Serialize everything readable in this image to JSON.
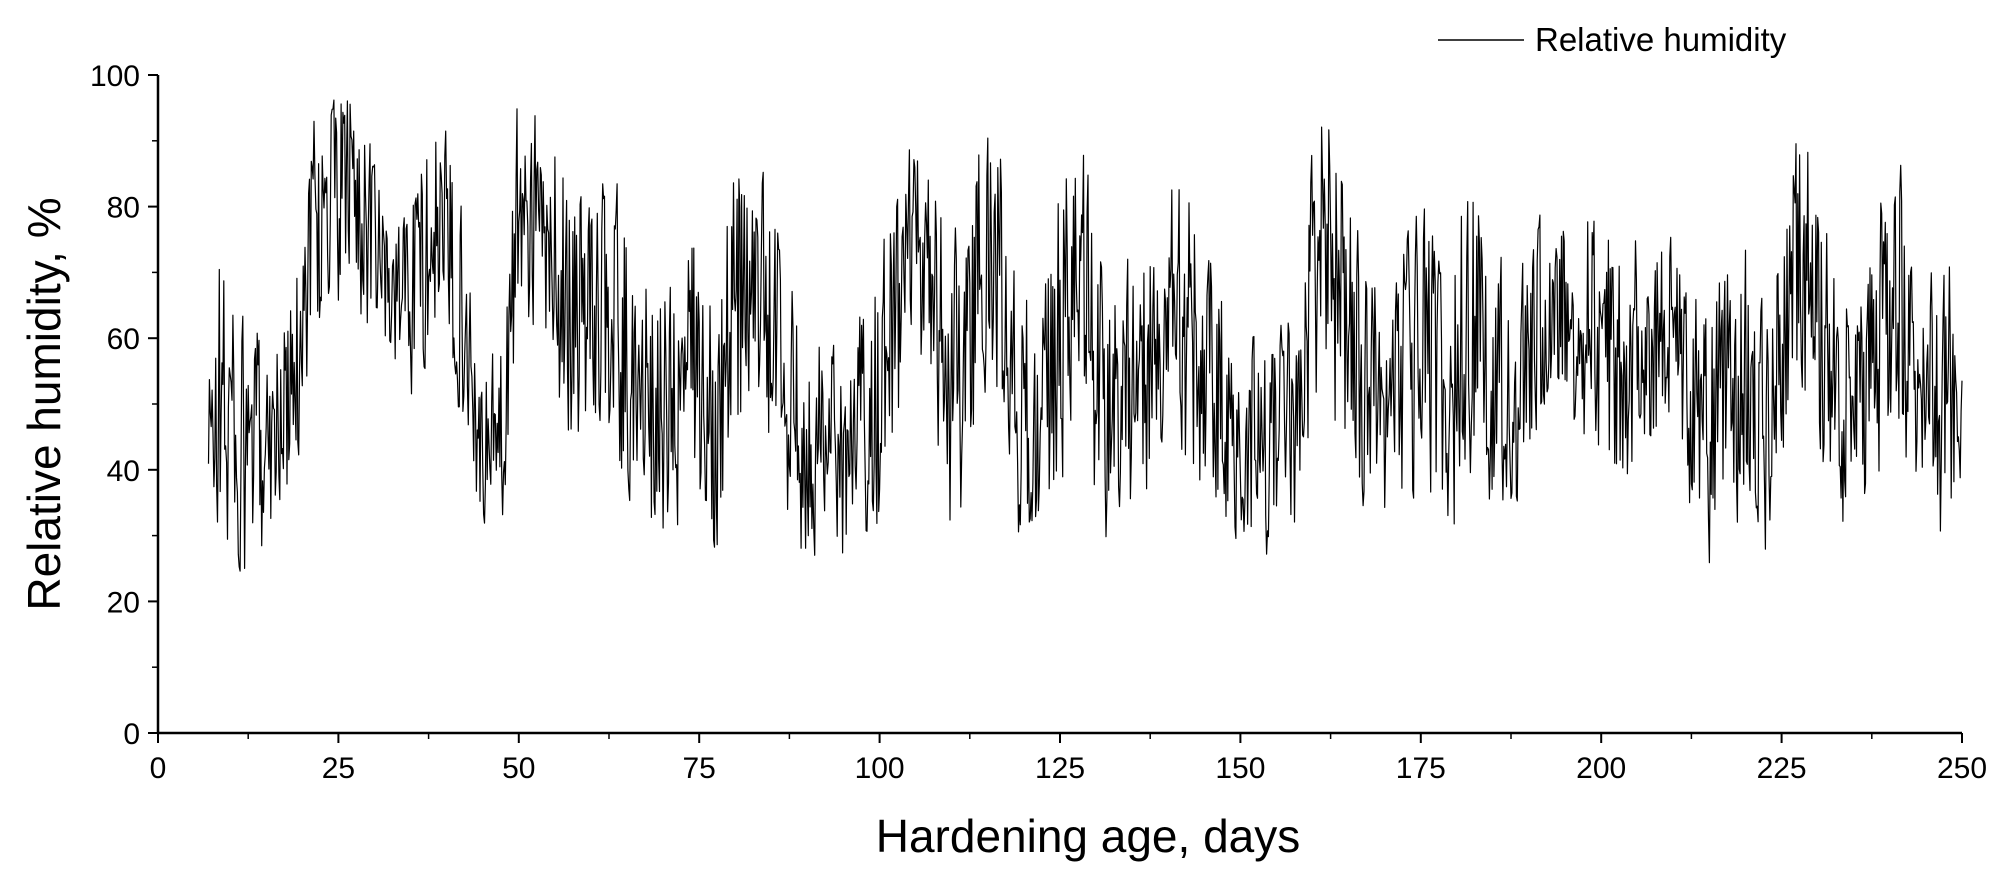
{
  "chart_data": {
    "type": "line",
    "title": "",
    "xlabel": "Hardening age, days",
    "ylabel": "Relative humidity, %",
    "xlim": [
      0,
      250
    ],
    "ylim": [
      0,
      100
    ],
    "xticks": [
      0,
      25,
      50,
      75,
      100,
      125,
      150,
      175,
      200,
      225,
      250
    ],
    "yticks": [
      0,
      20,
      40,
      60,
      80,
      100
    ],
    "grid": false,
    "legend_position": "top-right",
    "series": [
      {
        "name": "Relative humidity",
        "color": "#000000",
        "x_start": 7,
        "x_step": 0.125,
        "envelope_days": [
          7,
          8,
          10,
          12,
          15,
          17,
          19,
          21,
          24,
          27,
          30,
          33,
          36,
          39,
          42,
          45,
          48,
          50,
          53,
          56,
          59,
          62,
          65,
          68,
          71,
          74,
          77,
          80,
          83,
          86,
          89,
          92,
          95,
          98,
          101,
          104,
          107,
          110,
          113,
          116,
          119,
          122,
          125,
          128,
          131,
          134,
          137,
          140,
          143,
          146,
          149,
          152,
          155,
          158,
          161,
          164,
          167,
          170,
          173,
          176,
          179,
          182,
          185,
          188,
          191,
          194,
          197,
          200,
          203,
          206,
          209,
          212,
          214,
          217,
          220,
          223,
          226,
          229,
          232,
          235,
          238,
          241,
          244,
          247,
          250
        ],
        "envelope_mean": [
          40,
          52,
          48,
          40,
          46,
          48,
          52,
          76,
          80,
          84,
          72,
          66,
          70,
          78,
          66,
          42,
          48,
          82,
          76,
          68,
          62,
          66,
          56,
          50,
          48,
          54,
          50,
          66,
          68,
          58,
          44,
          46,
          40,
          48,
          54,
          72,
          70,
          50,
          66,
          74,
          52,
          42,
          62,
          66,
          50,
          52,
          56,
          64,
          60,
          56,
          42,
          46,
          42,
          48,
          78,
          64,
          52,
          46,
          58,
          56,
          50,
          64,
          54,
          50,
          60,
          66,
          66,
          60,
          56,
          60,
          60,
          52,
          44,
          50,
          54,
          44,
          66,
          72,
          50,
          52,
          56,
          70,
          54,
          48,
          56
        ],
        "envelope_amp": [
          10,
          18,
          16,
          14,
          12,
          10,
          12,
          14,
          12,
          12,
          10,
          10,
          12,
          12,
          12,
          8,
          10,
          12,
          12,
          14,
          14,
          14,
          16,
          14,
          14,
          16,
          16,
          16,
          14,
          14,
          12,
          12,
          10,
          14,
          16,
          12,
          12,
          16,
          16,
          14,
          16,
          12,
          16,
          16,
          14,
          14,
          14,
          14,
          16,
          16,
          10,
          12,
          12,
          12,
          16,
          16,
          14,
          14,
          16,
          16,
          16,
          16,
          14,
          12,
          12,
          12,
          14,
          14,
          14,
          12,
          12,
          12,
          14,
          14,
          14,
          12,
          14,
          16,
          14,
          14,
          14,
          16,
          14,
          14,
          14
        ],
        "min": 16,
        "max": 99
      }
    ]
  }
}
